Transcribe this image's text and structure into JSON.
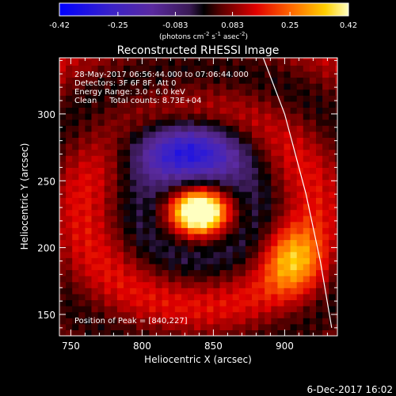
{
  "chart_data": {
    "type": "heatmap",
    "title": "Reconstructed RHESSI Image",
    "colorbar": {
      "ticks": [
        "-0.42",
        "-0.25",
        "-0.083",
        "0.083",
        "0.25",
        "0.42"
      ],
      "range": [
        -0.42,
        0.42
      ],
      "unit_text": "(photons cm",
      "unit_sup1": "-2",
      "unit_mid": " s",
      "unit_sup2": "-1",
      "unit_end": " asec",
      "unit_sup3": "-2",
      "unit_close": ")"
    },
    "xlabel": "Heliocentric X (arcsec)",
    "ylabel": "Heliocentric Y (arcsec)",
    "xlim": [
      742,
      937
    ],
    "ylim": [
      134,
      342
    ],
    "x_ticks": [
      750,
      800,
      850,
      900
    ],
    "y_ticks": [
      150,
      200,
      250,
      300
    ],
    "x_tick_labels": [
      "750",
      "800",
      "850",
      "900"
    ],
    "y_tick_labels": [
      "150",
      "200",
      "250",
      "300"
    ],
    "annotations": {
      "line1": "28-May-2017 06:56:44.000 to 07:06:44.000",
      "line2": "Detectors: 3F 6F 8F, Att 0",
      "line3": "Energy Range: 3.0 - 6.0 keV",
      "line4": "Clean     Total counts: 8.73E+04",
      "peak": "Position of Peak = [840,227]"
    },
    "peak": [
      840,
      227
    ],
    "features": [
      {
        "x": 840,
        "y": 227,
        "value": 0.42,
        "sx": 12,
        "sy": 10
      },
      {
        "x": 830,
        "y": 275,
        "value": -0.34,
        "sx": 30,
        "sy": 16
      },
      {
        "x": 905,
        "y": 192,
        "value": 0.2,
        "sx": 14,
        "sy": 18
      }
    ],
    "limb_curve": [
      [
        885,
        342
      ],
      [
        900,
        300
      ],
      [
        915,
        240
      ],
      [
        925,
        190
      ],
      [
        933,
        140
      ]
    ]
  },
  "footer": {
    "date": "6-Dec-2017 16:02"
  },
  "colors": {
    "background": "#000000",
    "axes": "#ffffff"
  }
}
